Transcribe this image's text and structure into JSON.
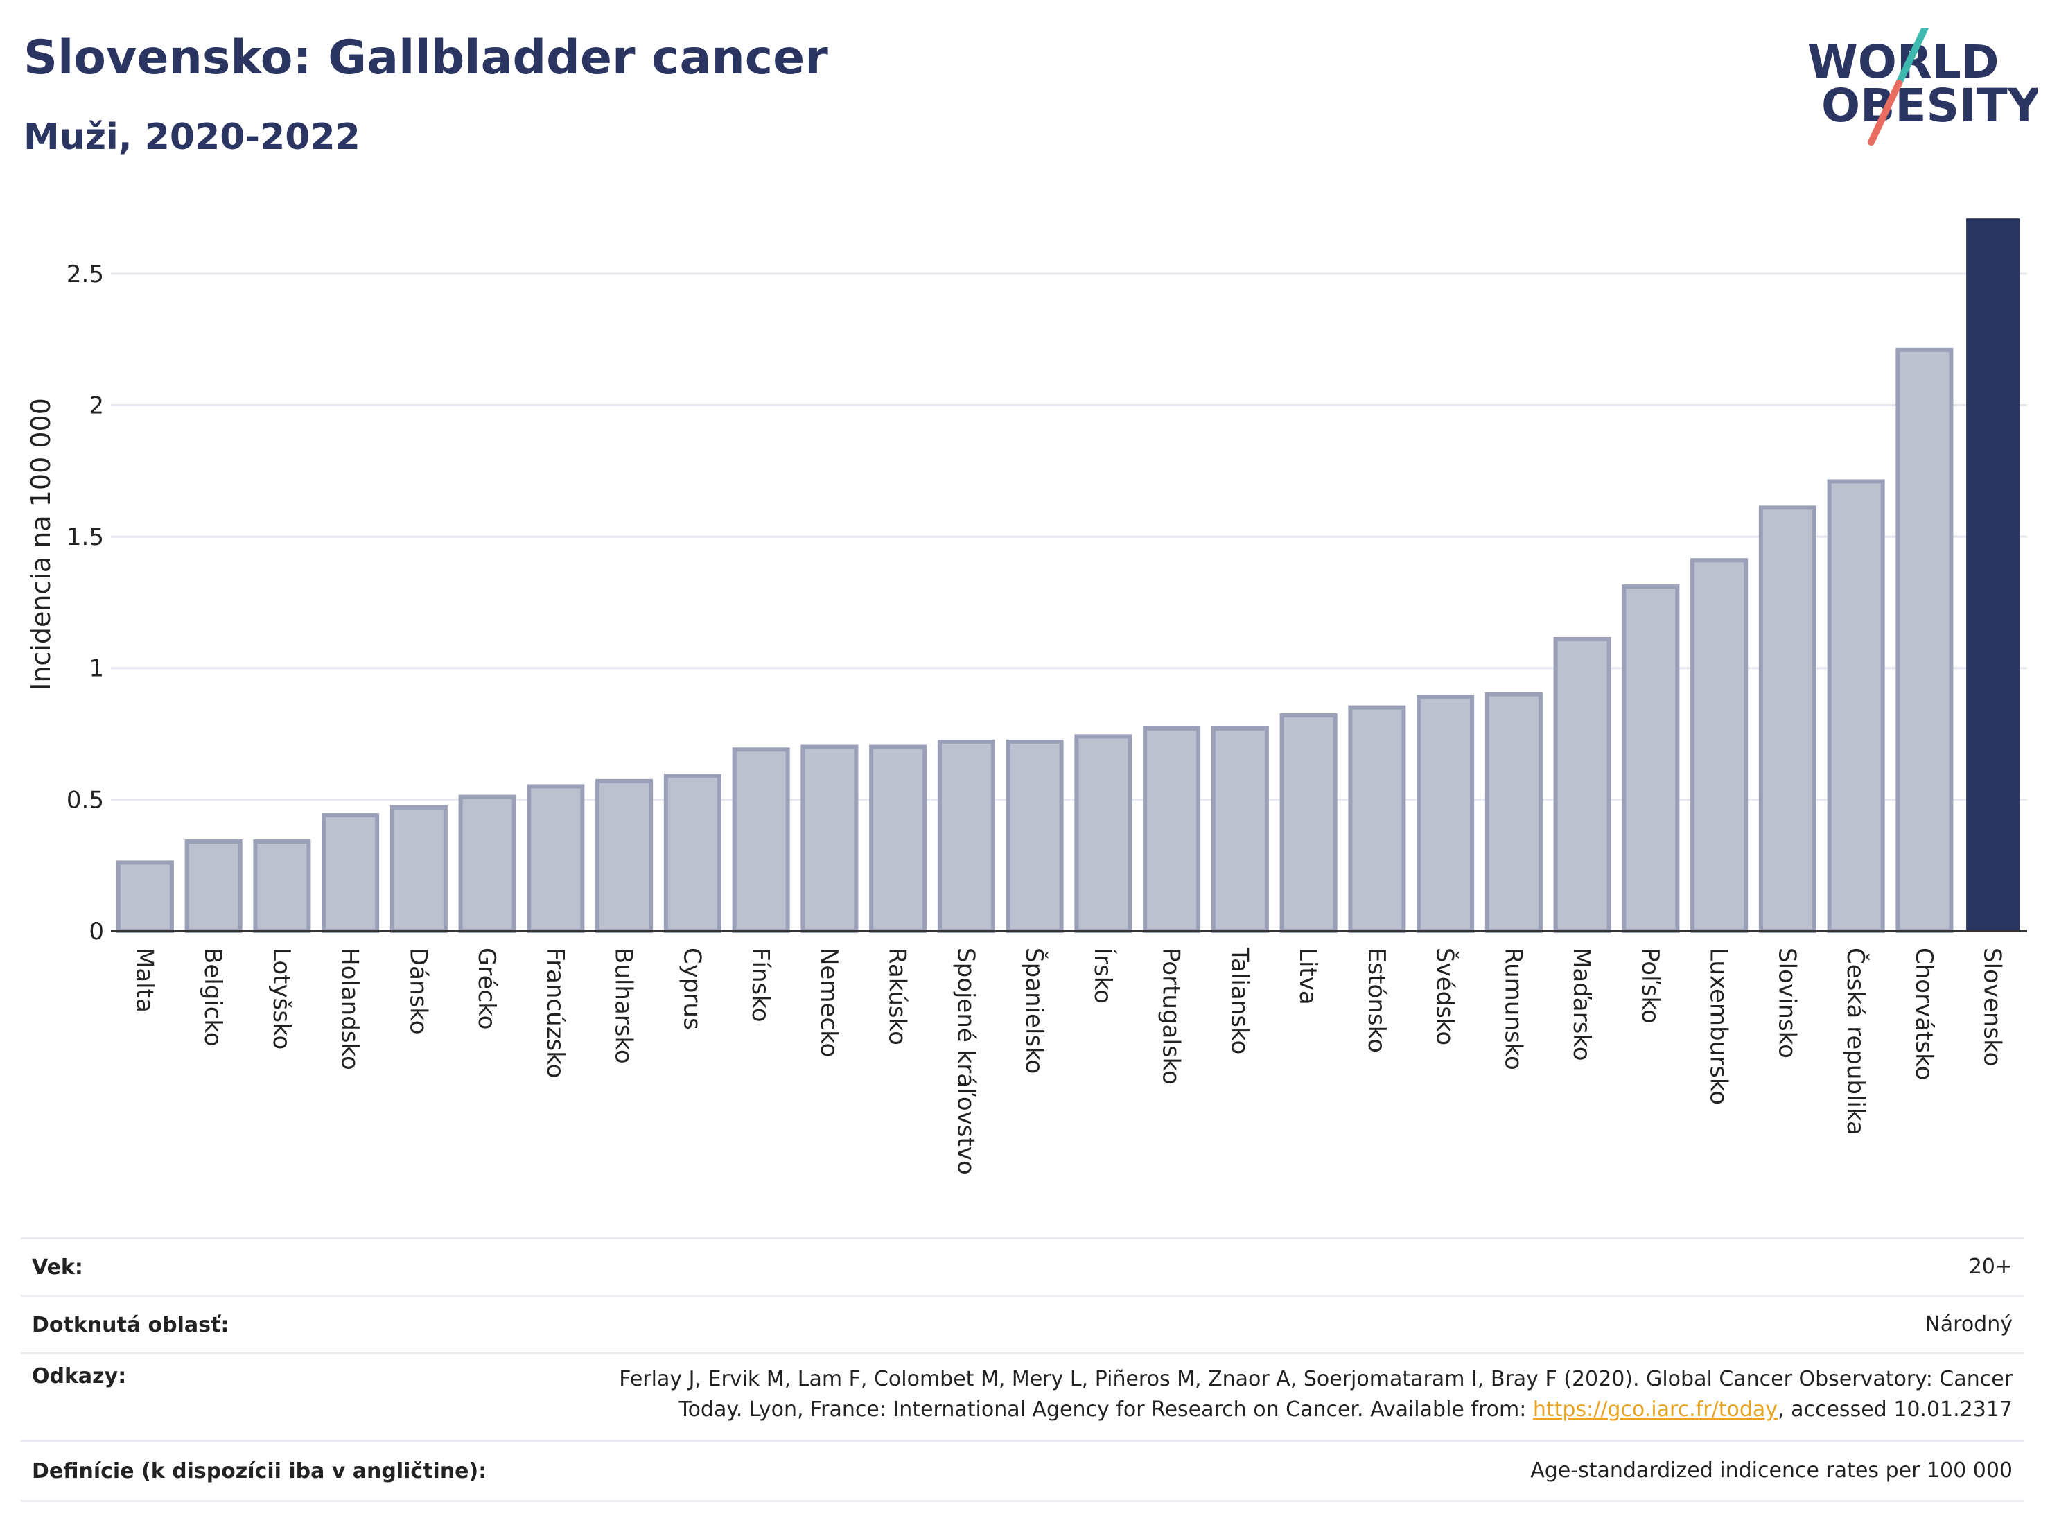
{
  "header": {
    "title": "Slovensko: Gallbladder cancer",
    "subtitle": "Muži, 2020-2022"
  },
  "logo": {
    "line1": "WORLD",
    "line2": "OBESITY",
    "icon": "world-obesity-logo"
  },
  "colors": {
    "bar": "#bcc0cf",
    "bar_border": "#9aa0b8",
    "highlight": "#2b3561",
    "title": "#2b3561",
    "grid": "#e6e6ee",
    "link": "#e8a320"
  },
  "chart_data": {
    "type": "bar",
    "ylabel": "Incidencia na 100 000",
    "ylim": [
      0,
      2.75
    ],
    "yticks": [
      0,
      0.5,
      1,
      1.5,
      2,
      2.5
    ],
    "ytick_labels": [
      "0",
      "0.5",
      "1",
      "1.5",
      "2",
      "2.5"
    ],
    "grid": true,
    "highlight": "Slovensko",
    "categories": [
      "Malta",
      "Belgicko",
      "Lotyšsko",
      "Holandsko",
      "Dánsko",
      "Grécko",
      "Francúzsko",
      "Bulharsko",
      "Cyprus",
      "Fínsko",
      "Nemecko",
      "Rakúsko",
      "Spojené kráľovstvo",
      "Španielsko",
      "Írsko",
      "Portugalsko",
      "Taliansko",
      "Litva",
      "Estónsko",
      "Švédsko",
      "Rumunsko",
      "Maďarsko",
      "Poľsko",
      "Luxembursko",
      "Slovinsko",
      "Česká republika",
      "Chorvátsko",
      "Slovensko"
    ],
    "values": [
      0.26,
      0.34,
      0.34,
      0.44,
      0.47,
      0.51,
      0.55,
      0.57,
      0.59,
      0.69,
      0.7,
      0.7,
      0.72,
      0.72,
      0.74,
      0.77,
      0.77,
      0.82,
      0.85,
      0.89,
      0.9,
      1.11,
      1.31,
      1.41,
      1.61,
      1.71,
      2.21,
      2.71
    ]
  },
  "meta": {
    "age_label": "Vek:",
    "age_value": "20+",
    "area_label": "Dotknutá oblasť:",
    "area_value": "Národný",
    "refs_label": "Odkazy:",
    "refs_line1": "Ferlay J, Ervik M, Lam F, Colombet M, Mery L, Piñeros M, Znaor A, Soerjomataram I, Bray F (2020). Global Cancer Observatory: Cancer",
    "refs_line2_pre": "Today. Lyon, France: International Agency for Research on Cancer. Available from: ",
    "refs_link": "https://gco.iarc.fr/today",
    "refs_line2_post": ", accessed 10.01.2317",
    "defs_label": "Definície (k dispozícii iba v angličtine):",
    "defs_value": "Age-standardized indicence rates per 100 000"
  }
}
